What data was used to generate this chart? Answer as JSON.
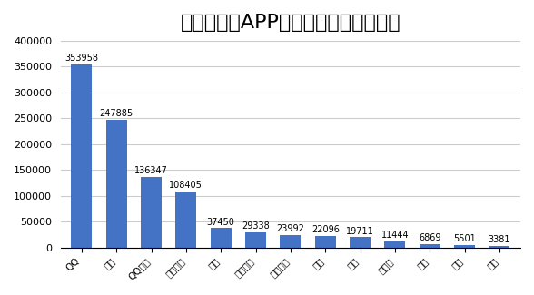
{
  "title": "热门社交类APP的累计下载量（万次）",
  "categories": [
    "QQ",
    "微信",
    "QQ空间",
    "新浪微博",
    "陌陌",
    "百度贴吧",
    "腾讯微博",
    "人人",
    "飞信",
    "开心网",
    "易信",
    "米聊",
    "友住"
  ],
  "values": [
    353958,
    247885,
    136347,
    108405,
    37450,
    29338,
    23992,
    22096,
    19711,
    11444,
    6869,
    5501,
    3381
  ],
  "bar_color": "#4472C4",
  "background_color": "#FFFFFF",
  "ylim": [
    0,
    400000
  ],
  "yticks": [
    0,
    50000,
    100000,
    150000,
    200000,
    250000,
    300000,
    350000,
    400000
  ],
  "title_fontsize": 16,
  "label_fontsize": 7.5,
  "value_fontsize": 7,
  "tick_fontsize": 8,
  "grid_color": "#CCCCCC"
}
